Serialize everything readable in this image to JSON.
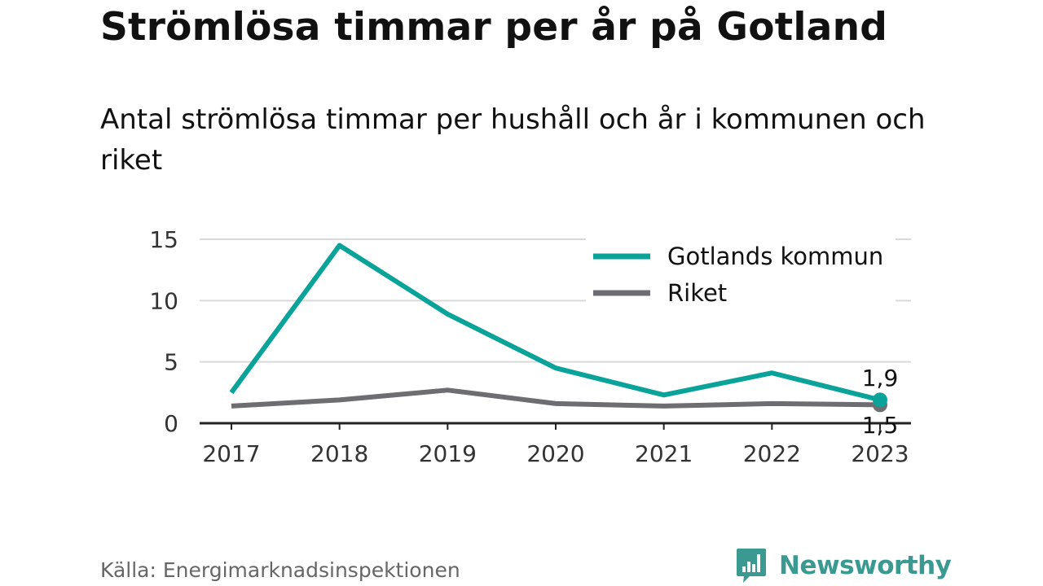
{
  "header": {
    "title": "Strömlösa timmar per år på Gotland",
    "subtitle": "Antal strömlösa timmar per hushåll och år i kommunen och riket"
  },
  "footer": {
    "source": "Källa: Energimarknadsinspektionen",
    "brand": "Newsworthy",
    "brand_icon": "bar-chart-speech-icon"
  },
  "colors": {
    "gotland": "#0aa39a",
    "riket": "#6e6e72",
    "grid": "#d9d9d9",
    "axis": "#222222",
    "brand": "#3a9a92"
  },
  "chart_data": {
    "type": "line",
    "x": [
      "2017",
      "2018",
      "2019",
      "2020",
      "2021",
      "2022",
      "2023"
    ],
    "series": [
      {
        "name": "Gotlands kommun",
        "values": [
          2.5,
          14.5,
          8.9,
          4.5,
          2.3,
          4.1,
          1.9
        ],
        "end_label": "1,9"
      },
      {
        "name": "Riket",
        "values": [
          1.4,
          1.9,
          2.7,
          1.6,
          1.4,
          1.6,
          1.5
        ],
        "end_label": "1,5"
      }
    ],
    "yticks": [
      "0",
      "5",
      "10",
      "15"
    ],
    "ylim": [
      0,
      15
    ],
    "grid": true,
    "legend": "top-right"
  }
}
